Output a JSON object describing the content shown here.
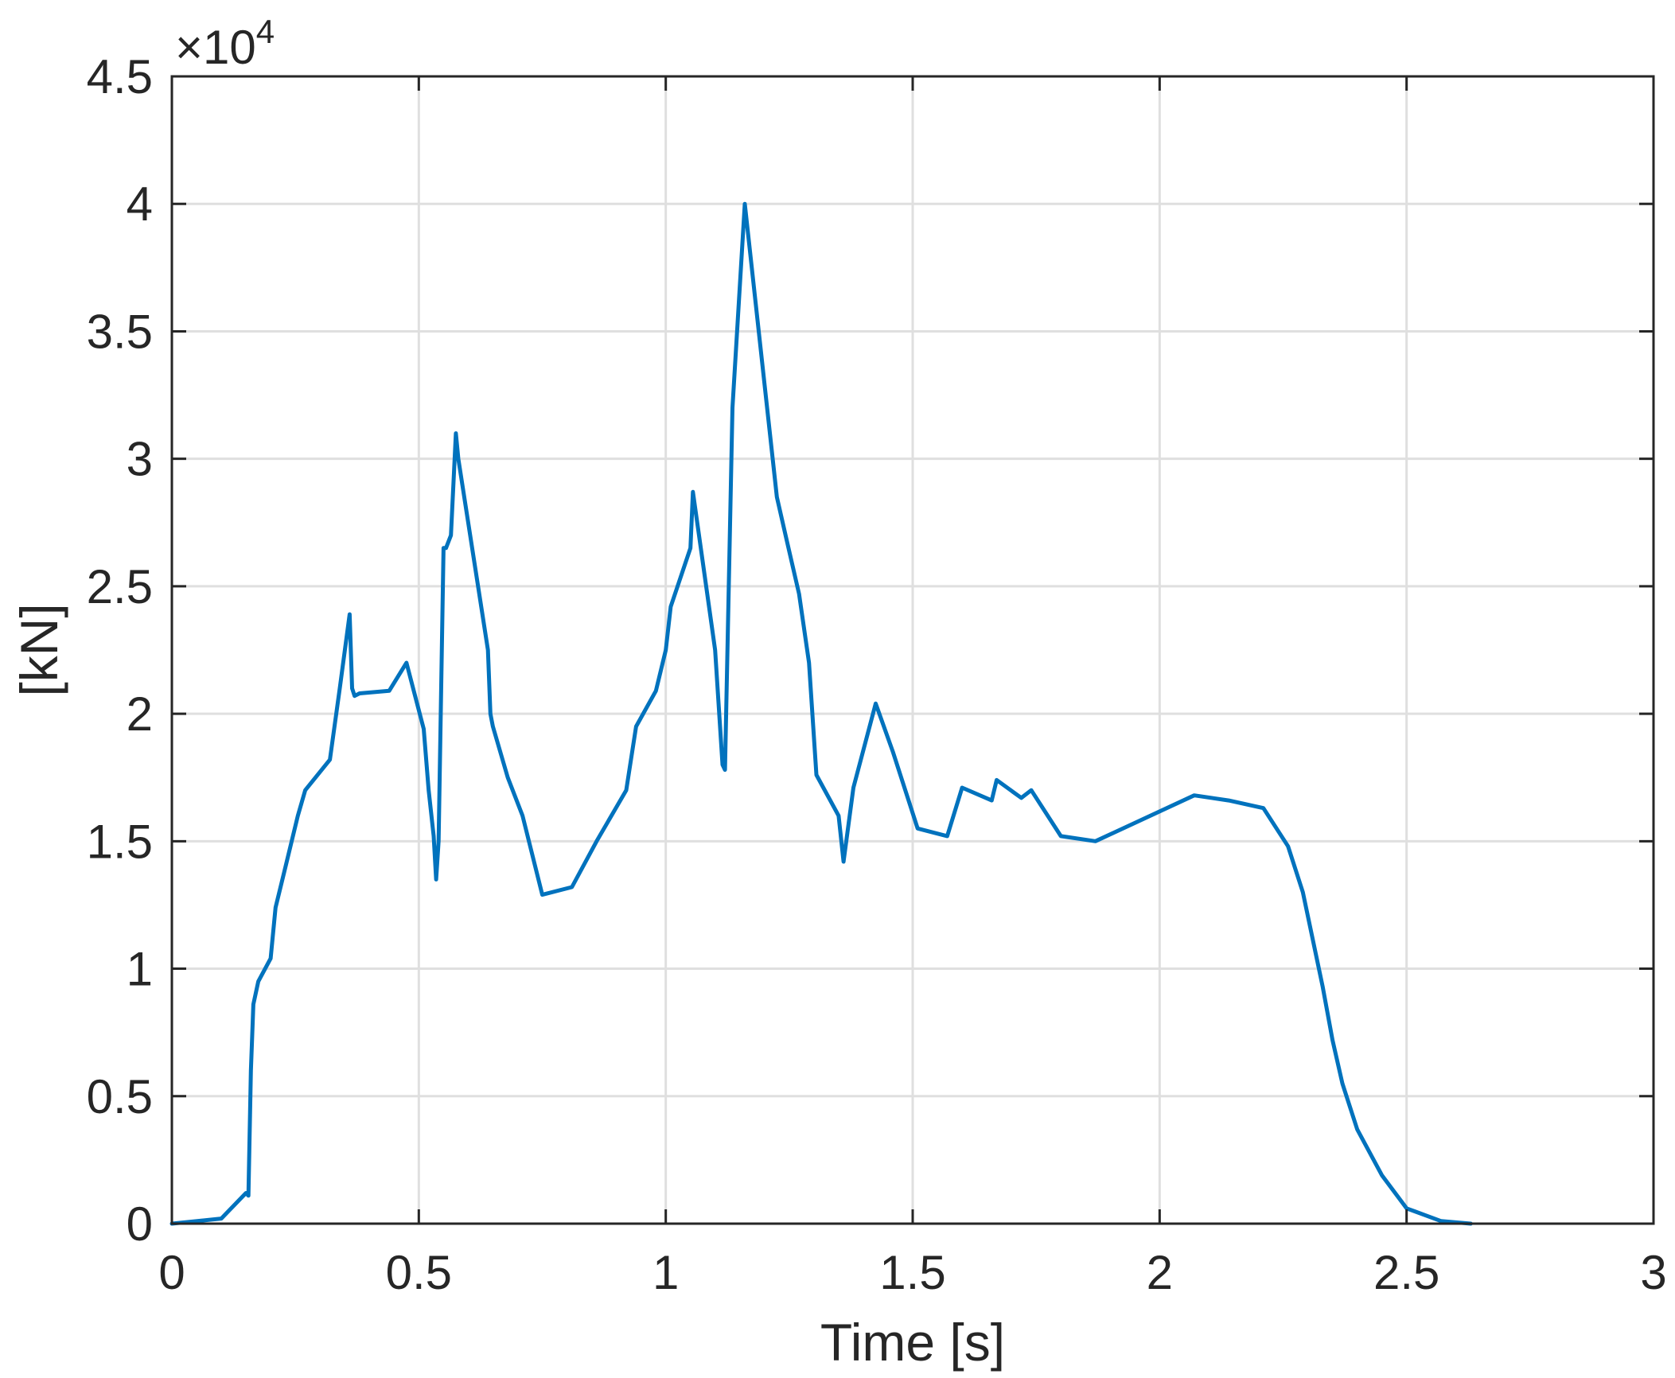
{
  "chart_data": {
    "type": "line",
    "xlabel": "Time [s]",
    "ylabel": "[kN]",
    "xlim": [
      0,
      3
    ],
    "ylim": [
      0,
      45000
    ],
    "xticks": [
      0,
      0.5,
      1,
      1.5,
      2,
      2.5,
      3
    ],
    "xtick_labels": [
      "0",
      "0.5",
      "1",
      "1.5",
      "2",
      "2.5",
      "3"
    ],
    "yticks": [
      0,
      5000,
      10000,
      15000,
      20000,
      25000,
      30000,
      35000,
      40000,
      45000
    ],
    "ytick_labels": [
      "0",
      "0.5",
      "1",
      "1.5",
      "2",
      "2.5",
      "3",
      "3.5",
      "4",
      "4.5"
    ],
    "y_exponent": {
      "prefix": "×10",
      "power": "4"
    },
    "grid": true,
    "series": [
      {
        "color": "#0072BD",
        "x": [
          0,
          0.1,
          0.15,
          0.155,
          0.16,
          0.165,
          0.175,
          0.2,
          0.21,
          0.23,
          0.255,
          0.27,
          0.32,
          0.34,
          0.36,
          0.365,
          0.37,
          0.38,
          0.44,
          0.475,
          0.51,
          0.52,
          0.53,
          0.535,
          0.54,
          0.55,
          0.555,
          0.565,
          0.575,
          0.58,
          0.64,
          0.645,
          0.65,
          0.68,
          0.71,
          0.75,
          0.81,
          0.86,
          0.92,
          0.94,
          0.98,
          1.0,
          1.01,
          1.05,
          1.055,
          1.1,
          1.115,
          1.12,
          1.135,
          1.16,
          1.225,
          1.245,
          1.27,
          1.29,
          1.305,
          1.35,
          1.36,
          1.38,
          1.425,
          1.46,
          1.51,
          1.57,
          1.6,
          1.66,
          1.67,
          1.72,
          1.74,
          1.8,
          1.87,
          2.07,
          2.14,
          2.21,
          2.26,
          2.29,
          2.33,
          2.35,
          2.37,
          2.4,
          2.45,
          2.5,
          2.57,
          2.63
        ],
        "y": [
          0,
          200,
          1200,
          1100,
          6000,
          8600,
          9500,
          10400,
          12400,
          14000,
          16000,
          17000,
          18200,
          21000,
          23900,
          21000,
          20700,
          20800,
          20900,
          22000,
          19400,
          17000,
          15200,
          13500,
          15000,
          26500,
          26500,
          27000,
          31000,
          30000,
          22500,
          20000,
          19500,
          17500,
          16000,
          12900,
          13200,
          15000,
          17000,
          19500,
          20900,
          22500,
          24200,
          26500,
          28700,
          22500,
          18000,
          17800,
          32000,
          40000,
          28500,
          26800,
          24700,
          22000,
          17600,
          16000,
          14200,
          17100,
          20400,
          18500,
          15500,
          15200,
          17100,
          16600,
          17400,
          16700,
          17000,
          15200,
          15000,
          16800,
          16600,
          16300,
          14800,
          13000,
          9300,
          7200,
          5500,
          3700,
          1900,
          600,
          100,
          0
        ]
      }
    ]
  }
}
